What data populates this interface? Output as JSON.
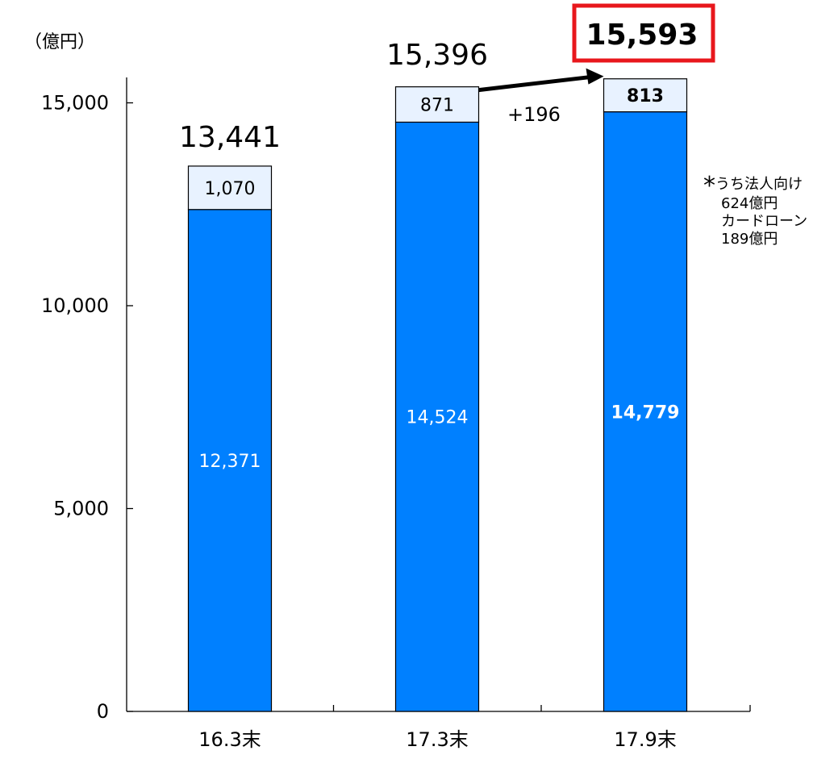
{
  "unit_label": "（億円）",
  "chart_data": {
    "type": "bar",
    "stacked": true,
    "categories": [
      "16.3末",
      "17.3末",
      "17.9末"
    ],
    "series": [
      {
        "values": [
          12371,
          14524,
          14779
        ],
        "color": "#0080ff"
      },
      {
        "values": [
          1070,
          871,
          813
        ],
        "color": "#e8f2ff"
      }
    ],
    "totals": [
      13441,
      15396,
      15593
    ],
    "total_labels": [
      "13,441",
      "15,396",
      "15,593"
    ],
    "segment_labels": [
      [
        "12,371",
        "14,524",
        "14,779"
      ],
      [
        "1,070",
        "871",
        "813"
      ]
    ],
    "y_ticks": [
      0,
      5000,
      10000,
      15000
    ],
    "y_tick_labels": [
      "0",
      "5,000",
      "10,000",
      "15,000"
    ],
    "ylim": [
      0,
      15600
    ],
    "grid": false,
    "highlight_color": "#e8171c",
    "annotation": {
      "text": "+196",
      "from_category": "17.3末",
      "to_category": "17.9末"
    }
  },
  "note": {
    "marker": "*",
    "lines": [
      "うち法人向け",
      "624億円",
      "カードローン",
      "189億円"
    ]
  }
}
